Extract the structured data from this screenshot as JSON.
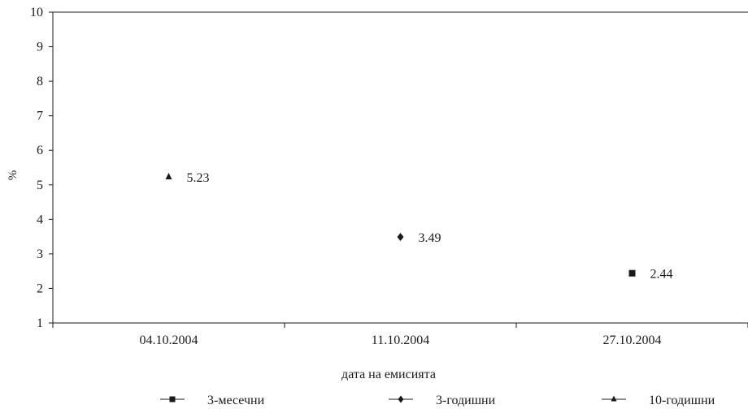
{
  "chart_data": {
    "type": "scatter",
    "title": "",
    "xlabel": "дата на емисията",
    "ylabel": "%",
    "categories": [
      "04.10.2004",
      "11.10.2004",
      "27.10.2004"
    ],
    "ylim": [
      1,
      10
    ],
    "yticks": [
      1,
      2,
      3,
      4,
      5,
      6,
      7,
      8,
      9,
      10
    ],
    "grid": false,
    "legend_position": "bottom",
    "series": [
      {
        "name": "3-месечни",
        "marker": "square",
        "points": [
          {
            "x": "27.10.2004",
            "y": 2.44,
            "label": "2.44"
          }
        ]
      },
      {
        "name": "3-годишни",
        "marker": "diamond",
        "points": [
          {
            "x": "11.10.2004",
            "y": 3.49,
            "label": "3.49"
          }
        ]
      },
      {
        "name": "10-годишни",
        "marker": "triangle",
        "points": [
          {
            "x": "04.10.2004",
            "y": 5.23,
            "label": "5.23"
          }
        ]
      }
    ]
  }
}
